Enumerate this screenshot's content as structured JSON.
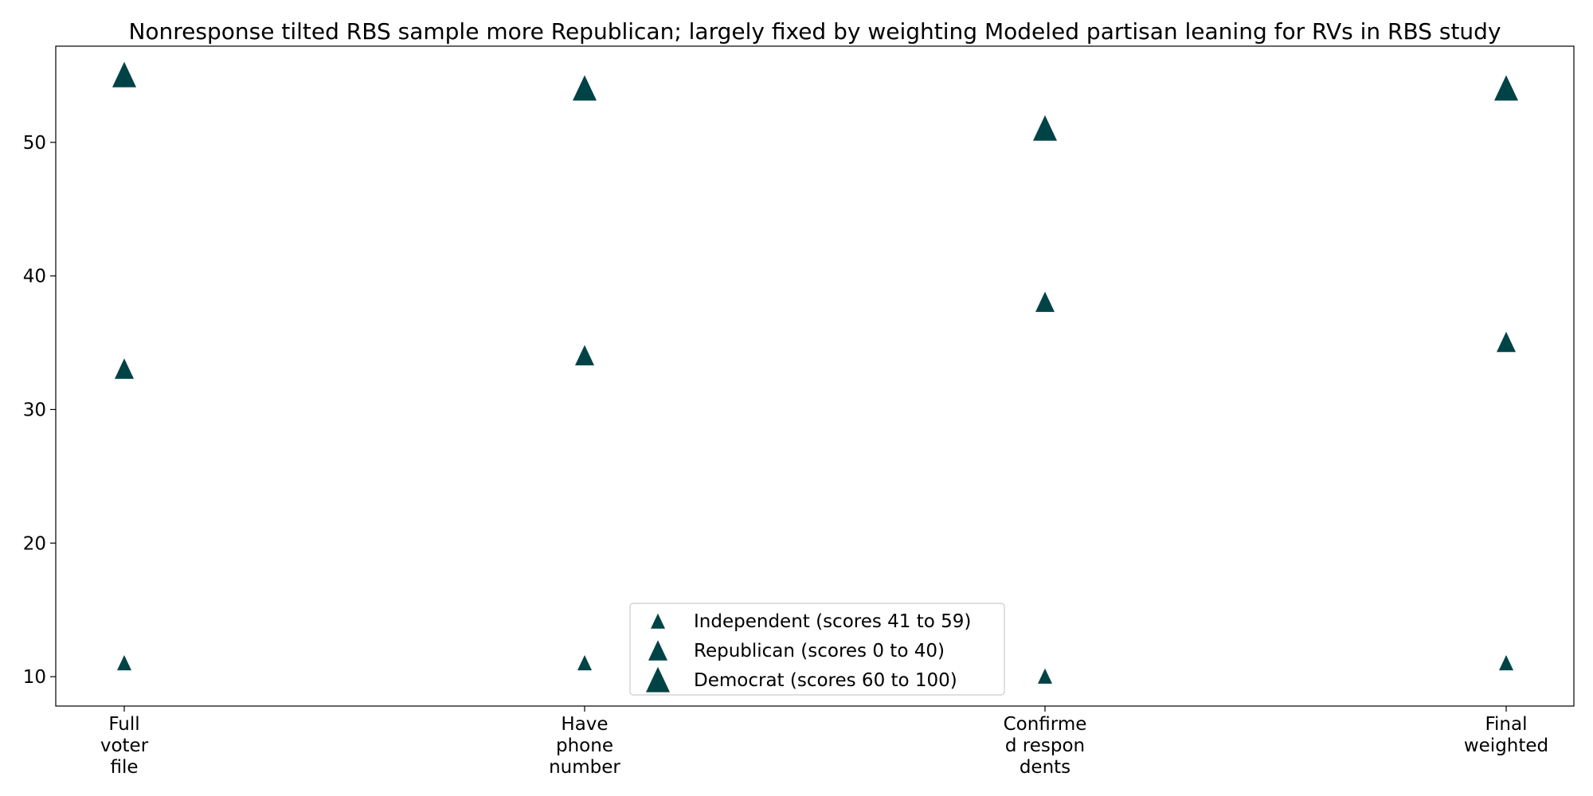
{
  "chart_data": {
    "type": "scatter",
    "title": "Nonresponse tilted RBS sample more Republican; largely fixed by weighting Modeled partisan leaning for RVs in RBS study",
    "xlabel": "",
    "ylabel": "",
    "categories": [
      [
        "Full",
        "voter",
        "file"
      ],
      [
        "Have",
        "phone",
        "number"
      ],
      [
        "Confirme",
        "d respon",
        "dents"
      ],
      [
        "Final",
        "weighted"
      ]
    ],
    "y_ticks": [
      "10",
      "20",
      "30",
      "40",
      "50"
    ],
    "ylim": [
      7.8,
      57.2
    ],
    "grid": false,
    "legend_position": "lower center",
    "marker_color": "#004346",
    "series": [
      {
        "name": "Independent (scores 41 to 59)",
        "marker": "triangle-small",
        "values": [
          11,
          11,
          10,
          11
        ]
      },
      {
        "name": "Republican (scores 0 to 40)",
        "marker": "triangle-medium",
        "values": [
          33,
          34,
          38,
          35
        ]
      },
      {
        "name": "Democrat (scores 60 to 100)",
        "marker": "triangle-large",
        "values": [
          55,
          54,
          51,
          54
        ]
      }
    ]
  }
}
